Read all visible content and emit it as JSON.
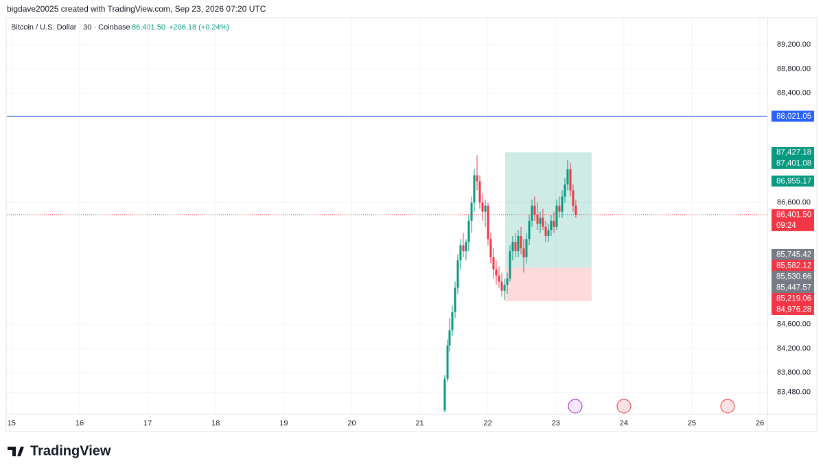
{
  "header": {
    "attribution": "bigdave20025 created with TradingView.com, Sep 23, 2026 07:20 UTC",
    "symbol": "Bitcoin / U.S. Dollar · 30 · Coinbase",
    "last": "86,401.50",
    "change": "+206.18 (+0.24%)"
  },
  "chart_data": {
    "type": "candlestick",
    "x": [
      21.367,
      21.408,
      21.438,
      21.478,
      21.519,
      21.559,
      21.599,
      21.64,
      21.68,
      21.72,
      21.761,
      21.801,
      21.842,
      21.882,
      21.922,
      21.963,
      22.003,
      22.043,
      22.084,
      22.124,
      22.165,
      22.205,
      22.245,
      22.286,
      22.326,
      22.366,
      22.407,
      22.447,
      22.488,
      22.528,
      22.568,
      22.609,
      22.649,
      22.689,
      22.73,
      22.77,
      22.81,
      22.851,
      22.891,
      22.931,
      22.972,
      23.012,
      23.052,
      23.093,
      23.133,
      23.173,
      23.214,
      23.254,
      23.294
    ],
    "open": [
      83180,
      83700,
      84250,
      84500,
      84800,
      85200,
      85650,
      85900,
      85800,
      85950,
      86300,
      86600,
      87050,
      86950,
      86600,
      86450,
      86550,
      86000,
      85700,
      85500,
      85400,
      85300,
      85150,
      85250,
      85350,
      85800,
      85950,
      85800,
      86050,
      85850,
      85700,
      86000,
      86300,
      86550,
      86400,
      86250,
      86350,
      86200,
      86050,
      86150,
      86300,
      86200,
      86550,
      86450,
      86700,
      86900,
      87150,
      86800,
      86550
    ],
    "high": [
      83760,
      84350,
      84700,
      84900,
      85300,
      85750,
      86000,
      86100,
      86000,
      86400,
      86700,
      87150,
      87380,
      87050,
      86750,
      86650,
      86600,
      86100,
      85850,
      85650,
      85550,
      85450,
      85350,
      85450,
      85900,
      86050,
      86100,
      86150,
      86200,
      86000,
      86100,
      86400,
      86650,
      86700,
      86600,
      86450,
      86500,
      86300,
      86250,
      86400,
      86450,
      86650,
      86700,
      86800,
      87000,
      87300,
      87250,
      86900,
      86650
    ],
    "low": [
      83150,
      83650,
      84150,
      84400,
      84700,
      85100,
      85500,
      85700,
      85650,
      85800,
      86100,
      86450,
      86800,
      86500,
      86300,
      86200,
      85900,
      85600,
      85350,
      85250,
      85200,
      85050,
      85000,
      85100,
      85300,
      85650,
      85700,
      85700,
      85750,
      85450,
      85600,
      85900,
      86200,
      86300,
      86150,
      86100,
      86150,
      85950,
      85950,
      86050,
      86100,
      86150,
      86350,
      86350,
      86600,
      86800,
      86700,
      86450,
      86350
    ],
    "close": [
      83700,
      84250,
      84500,
      84800,
      85200,
      85650,
      85900,
      85800,
      85950,
      86300,
      86600,
      87050,
      86950,
      86600,
      86450,
      86550,
      86000,
      85700,
      85500,
      85400,
      85300,
      85150,
      85250,
      85350,
      85800,
      85950,
      85800,
      86050,
      85850,
      85700,
      86000,
      86300,
      86550,
      86400,
      86250,
      86350,
      86200,
      86050,
      86150,
      86300,
      86200,
      86550,
      86450,
      86700,
      86900,
      87150,
      86800,
      86550,
      86401.5
    ],
    "up_color": "#089981",
    "down_color": "#f23645",
    "xlim": [
      14.93,
      26.11
    ],
    "xticks": [
      15,
      16,
      17,
      18,
      19,
      20,
      21,
      22,
      23,
      24,
      25,
      26
    ],
    "ylim": [
      83115,
      89640
    ],
    "yticks": [
      {
        "value": 89200,
        "label": "89,200.00"
      },
      {
        "value": 88800,
        "label": "88,800.00"
      },
      {
        "value": 88400,
        "label": "88,400.00"
      },
      {
        "value": 86600,
        "label": "86,600.00"
      },
      {
        "value": 84600,
        "label": "84,600.00"
      },
      {
        "value": 84200,
        "label": "84,200.00"
      },
      {
        "value": 83800,
        "label": "83,800.00"
      },
      {
        "value": 83480,
        "label": "83,480.00"
      }
    ],
    "grid": true,
    "price_tags": [
      {
        "value": 88021.05,
        "label": "88,021.05",
        "color": "#2962ff",
        "line": "solid"
      },
      {
        "value": 87427.18,
        "label": "87,427.18",
        "color": "#089981"
      },
      {
        "value": 87401.08,
        "label": "87,401.08",
        "color": "#089981"
      },
      {
        "value": 86955.17,
        "label": "86,955.17",
        "color": "#089981"
      },
      {
        "value": 86401.5,
        "label": "86,401.50",
        "color": "#f23645",
        "line": "dotted",
        "countdown": "09:24"
      },
      {
        "value": 85745.42,
        "label": "85,745.42",
        "color": "#787b86"
      },
      {
        "value": 85582.12,
        "label": "85,582.12",
        "color": "#f23645"
      },
      {
        "value": 85530.66,
        "label": "85,530.66",
        "color": "#787b86"
      },
      {
        "value": 85447.57,
        "label": "85,447.57",
        "color": "#787b86"
      },
      {
        "value": 85219.06,
        "label": "85,219.06",
        "color": "#f23645"
      },
      {
        "value": 84976.28,
        "label": "84,976.28",
        "color": "#f23645"
      }
    ],
    "long_position": {
      "x": [
        22.255,
        23.527
      ],
      "target": 87427.18,
      "entry": 85530.66,
      "stop": 84976.28
    }
  },
  "footer": {
    "logo": "TradingView"
  }
}
